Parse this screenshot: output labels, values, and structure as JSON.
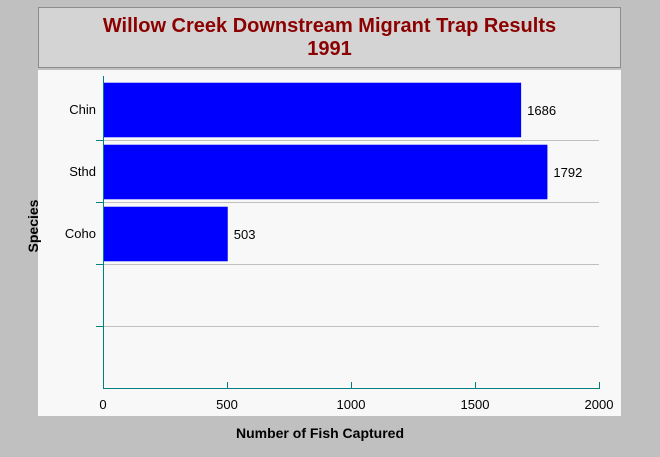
{
  "chart_data": {
    "type": "bar",
    "orientation": "horizontal",
    "title": "Willow Creek Downstream Migrant Trap Results",
    "subtitle": "1991",
    "xlabel": "Number of Fish Captured",
    "ylabel": "Species",
    "categories": [
      "Chin",
      "Sthd",
      "Coho"
    ],
    "values": [
      1686,
      1792,
      503
    ],
    "data_labels": [
      "1686",
      "1792",
      "503"
    ],
    "xlim": [
      0,
      2000
    ],
    "x_ticks": [
      0,
      500,
      1000,
      1500,
      2000
    ],
    "x_tick_labels": [
      "0",
      "500",
      "1000",
      "1500",
      "2000"
    ],
    "category_slots": 5,
    "grid": "horizontal",
    "legend": "none"
  },
  "colors": {
    "bar": "#0000ff",
    "title": "#8b0000",
    "axis": "#008080",
    "grid": "#c0c0c0"
  }
}
